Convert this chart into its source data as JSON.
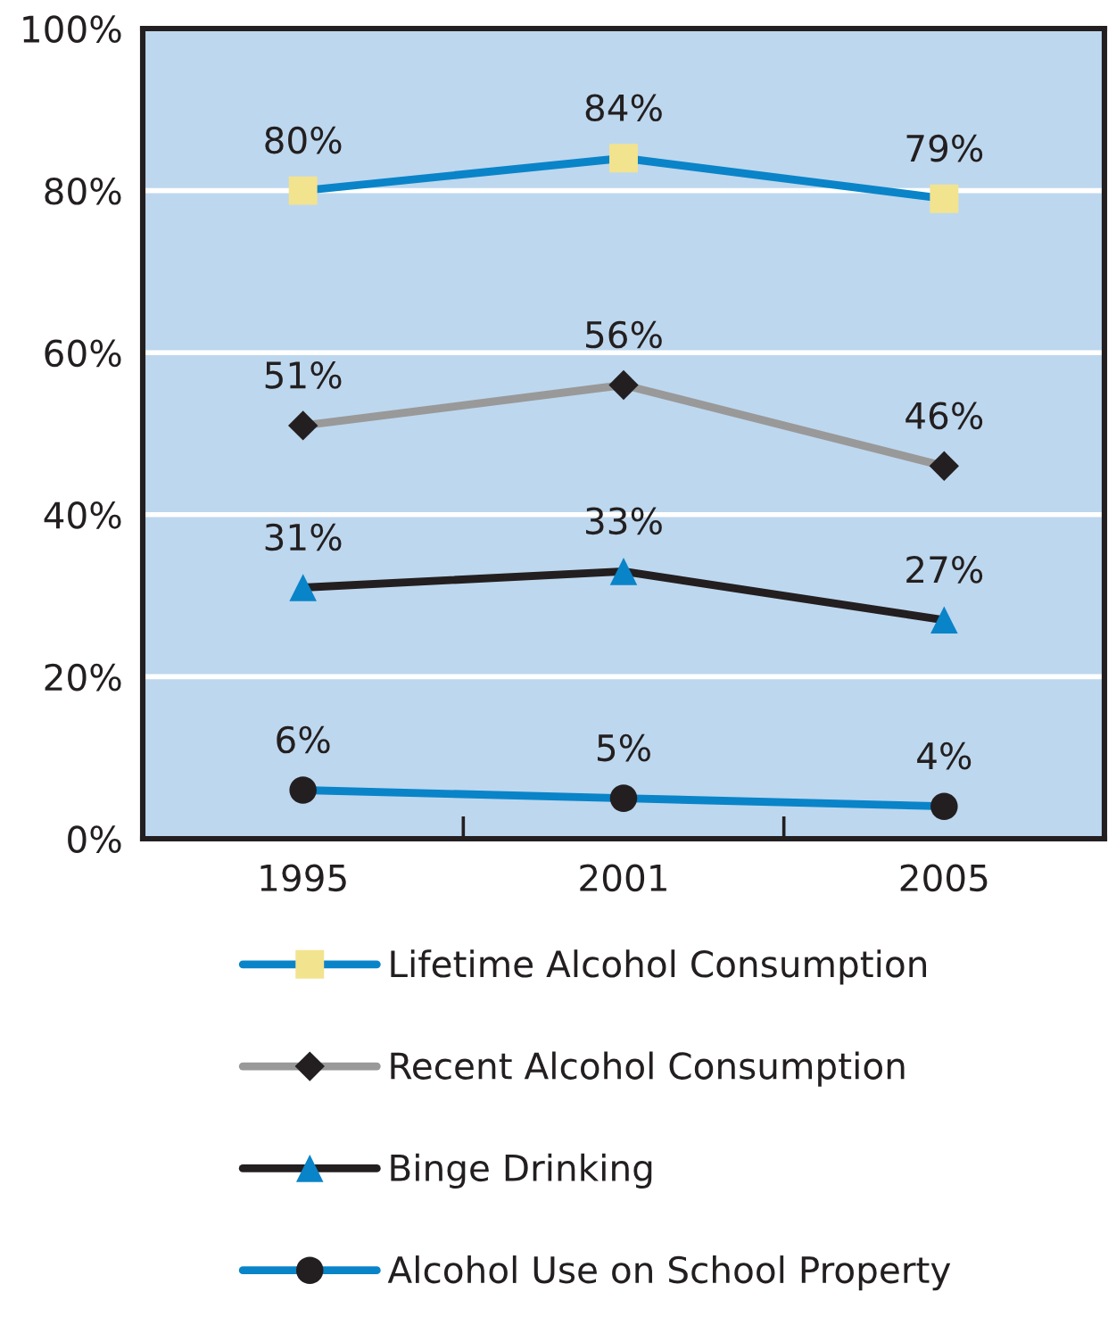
{
  "chart_data": {
    "type": "line",
    "categories": [
      "1995",
      "2001",
      "2005"
    ],
    "series": [
      {
        "name": "Lifetime Alcohol Consumption",
        "color": "#0a84c8",
        "marker": "square",
        "colors": [
          "#f2e38f",
          "#f2e38f",
          "#f2e38f"
        ],
        "values": [
          80,
          84,
          79
        ],
        "value_labels": [
          "80%",
          "84%",
          "79%"
        ]
      },
      {
        "name": "Recent Alcohol Consumption",
        "color": "#999999",
        "marker": "diamond",
        "colors": [
          "#231f20",
          "#231f20",
          "#231f20"
        ],
        "values": [
          51,
          56,
          46
        ],
        "value_labels": [
          "51%",
          "56%",
          "46%"
        ]
      },
      {
        "name": "Binge Drinking",
        "color": "#231f20",
        "marker": "triangle",
        "colors": [
          "#0a84c8",
          "#0a84c8",
          "#0a84c8"
        ],
        "values": [
          31,
          33,
          27
        ],
        "value_labels": [
          "31%",
          "33%",
          "27%"
        ]
      },
      {
        "name": "Alcohol Use on School Property",
        "color": "#0a84c8",
        "marker": "circle",
        "colors": [
          "#231f20",
          "#231f20",
          "#231f20"
        ],
        "values": [
          6,
          5,
          4
        ],
        "value_labels": [
          "6%",
          "5%",
          "4%"
        ]
      }
    ],
    "ylim": [
      0,
      100
    ],
    "yticks": [
      {
        "value": 0,
        "label": "0%"
      },
      {
        "value": 20,
        "label": "20%"
      },
      {
        "value": 40,
        "label": "40%"
      },
      {
        "value": 60,
        "label": "60%"
      },
      {
        "value": 80,
        "label": "80%"
      },
      {
        "value": 100,
        "label": "100%"
      }
    ],
    "grid": "y",
    "legend": "bottom",
    "line_style": "solid"
  }
}
